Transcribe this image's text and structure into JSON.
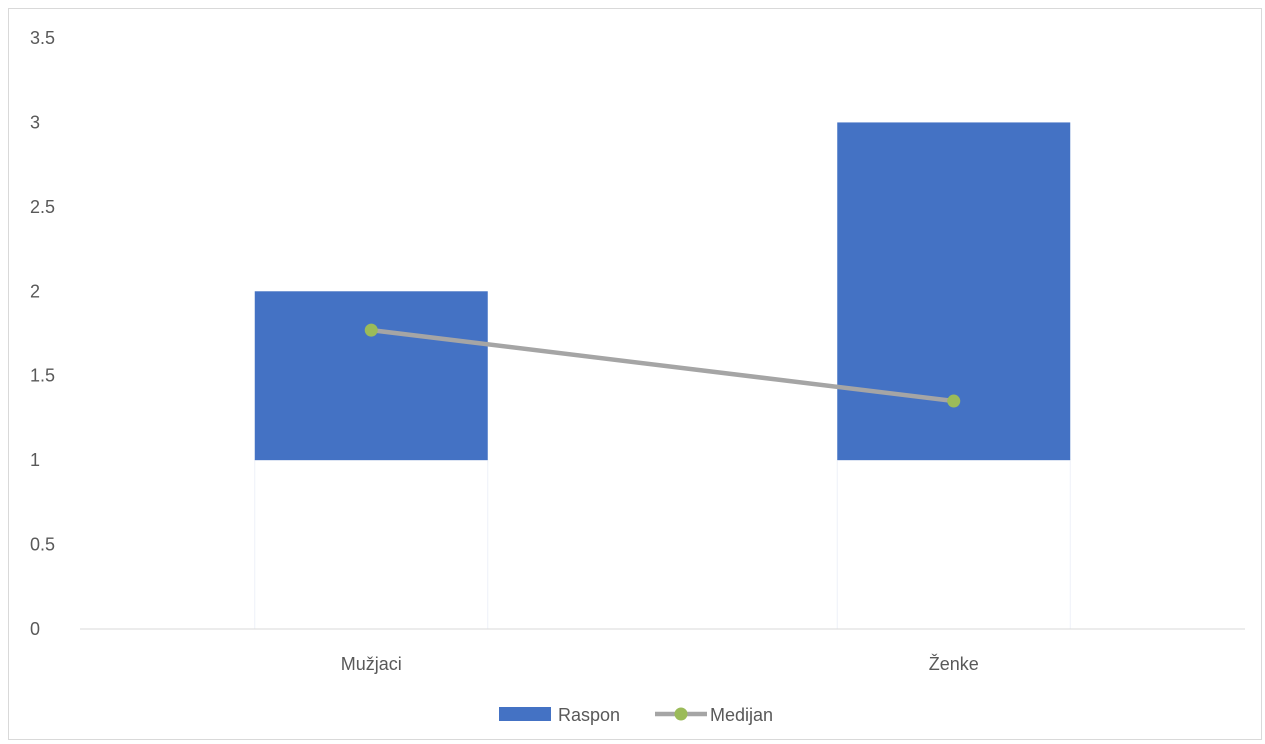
{
  "chart_data": {
    "type": "bar",
    "subtype": "floating-range-with-line",
    "title": "",
    "xlabel": "",
    "ylabel": "",
    "categories": [
      "Mužjaci",
      "Ženke"
    ],
    "ylim": [
      0,
      3.5
    ],
    "y_ticks": [
      "0",
      "0.5",
      "1",
      "1.5",
      "2",
      "2.5",
      "3",
      "3.5"
    ],
    "grid": false,
    "legend_position": "bottom",
    "series": [
      {
        "name": "Raspon",
        "type": "floating-bar",
        "color": "#4472c4",
        "low": [
          1,
          1
        ],
        "high": [
          2,
          3
        ]
      },
      {
        "name": "Medijan",
        "type": "line",
        "color": "#a5a5a5",
        "marker_color": "#9bbb59",
        "values": [
          1.77,
          1.35
        ]
      }
    ]
  }
}
